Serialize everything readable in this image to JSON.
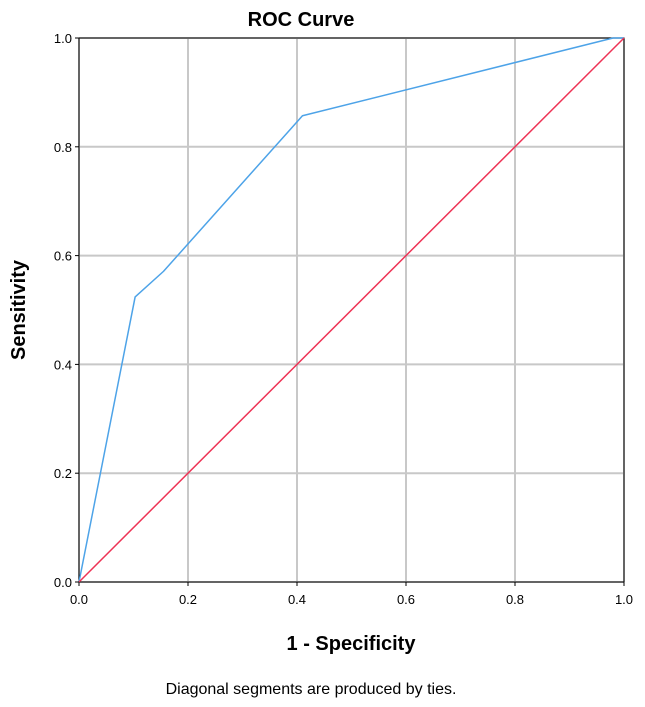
{
  "chart_data": {
    "type": "line",
    "title": "ROC Curve",
    "xlabel": "1 - Specificity",
    "ylabel": "Sensitivity",
    "xlim": [
      0.0,
      1.0
    ],
    "ylim": [
      0.0,
      1.0
    ],
    "x_ticks": [
      "0.0",
      "0.2",
      "0.4",
      "0.6",
      "0.8",
      "1.0"
    ],
    "y_ticks": [
      "0.0",
      "0.2",
      "0.4",
      "0.6",
      "0.8",
      "1.0"
    ],
    "grid": true,
    "legend": "none",
    "series": [
      {
        "color": "#4da3e8",
        "x": [
          0.0,
          0.103,
          0.155,
          0.41,
          0.98,
          1.0
        ],
        "y": [
          0.0,
          0.524,
          0.571,
          0.857,
          1.0,
          1.0
        ]
      },
      {
        "color": "#ee3355",
        "x": [
          0.0,
          1.0
        ],
        "y": [
          0.0,
          1.0
        ]
      }
    ],
    "footnote": "Diagonal segments are produced by ties."
  }
}
